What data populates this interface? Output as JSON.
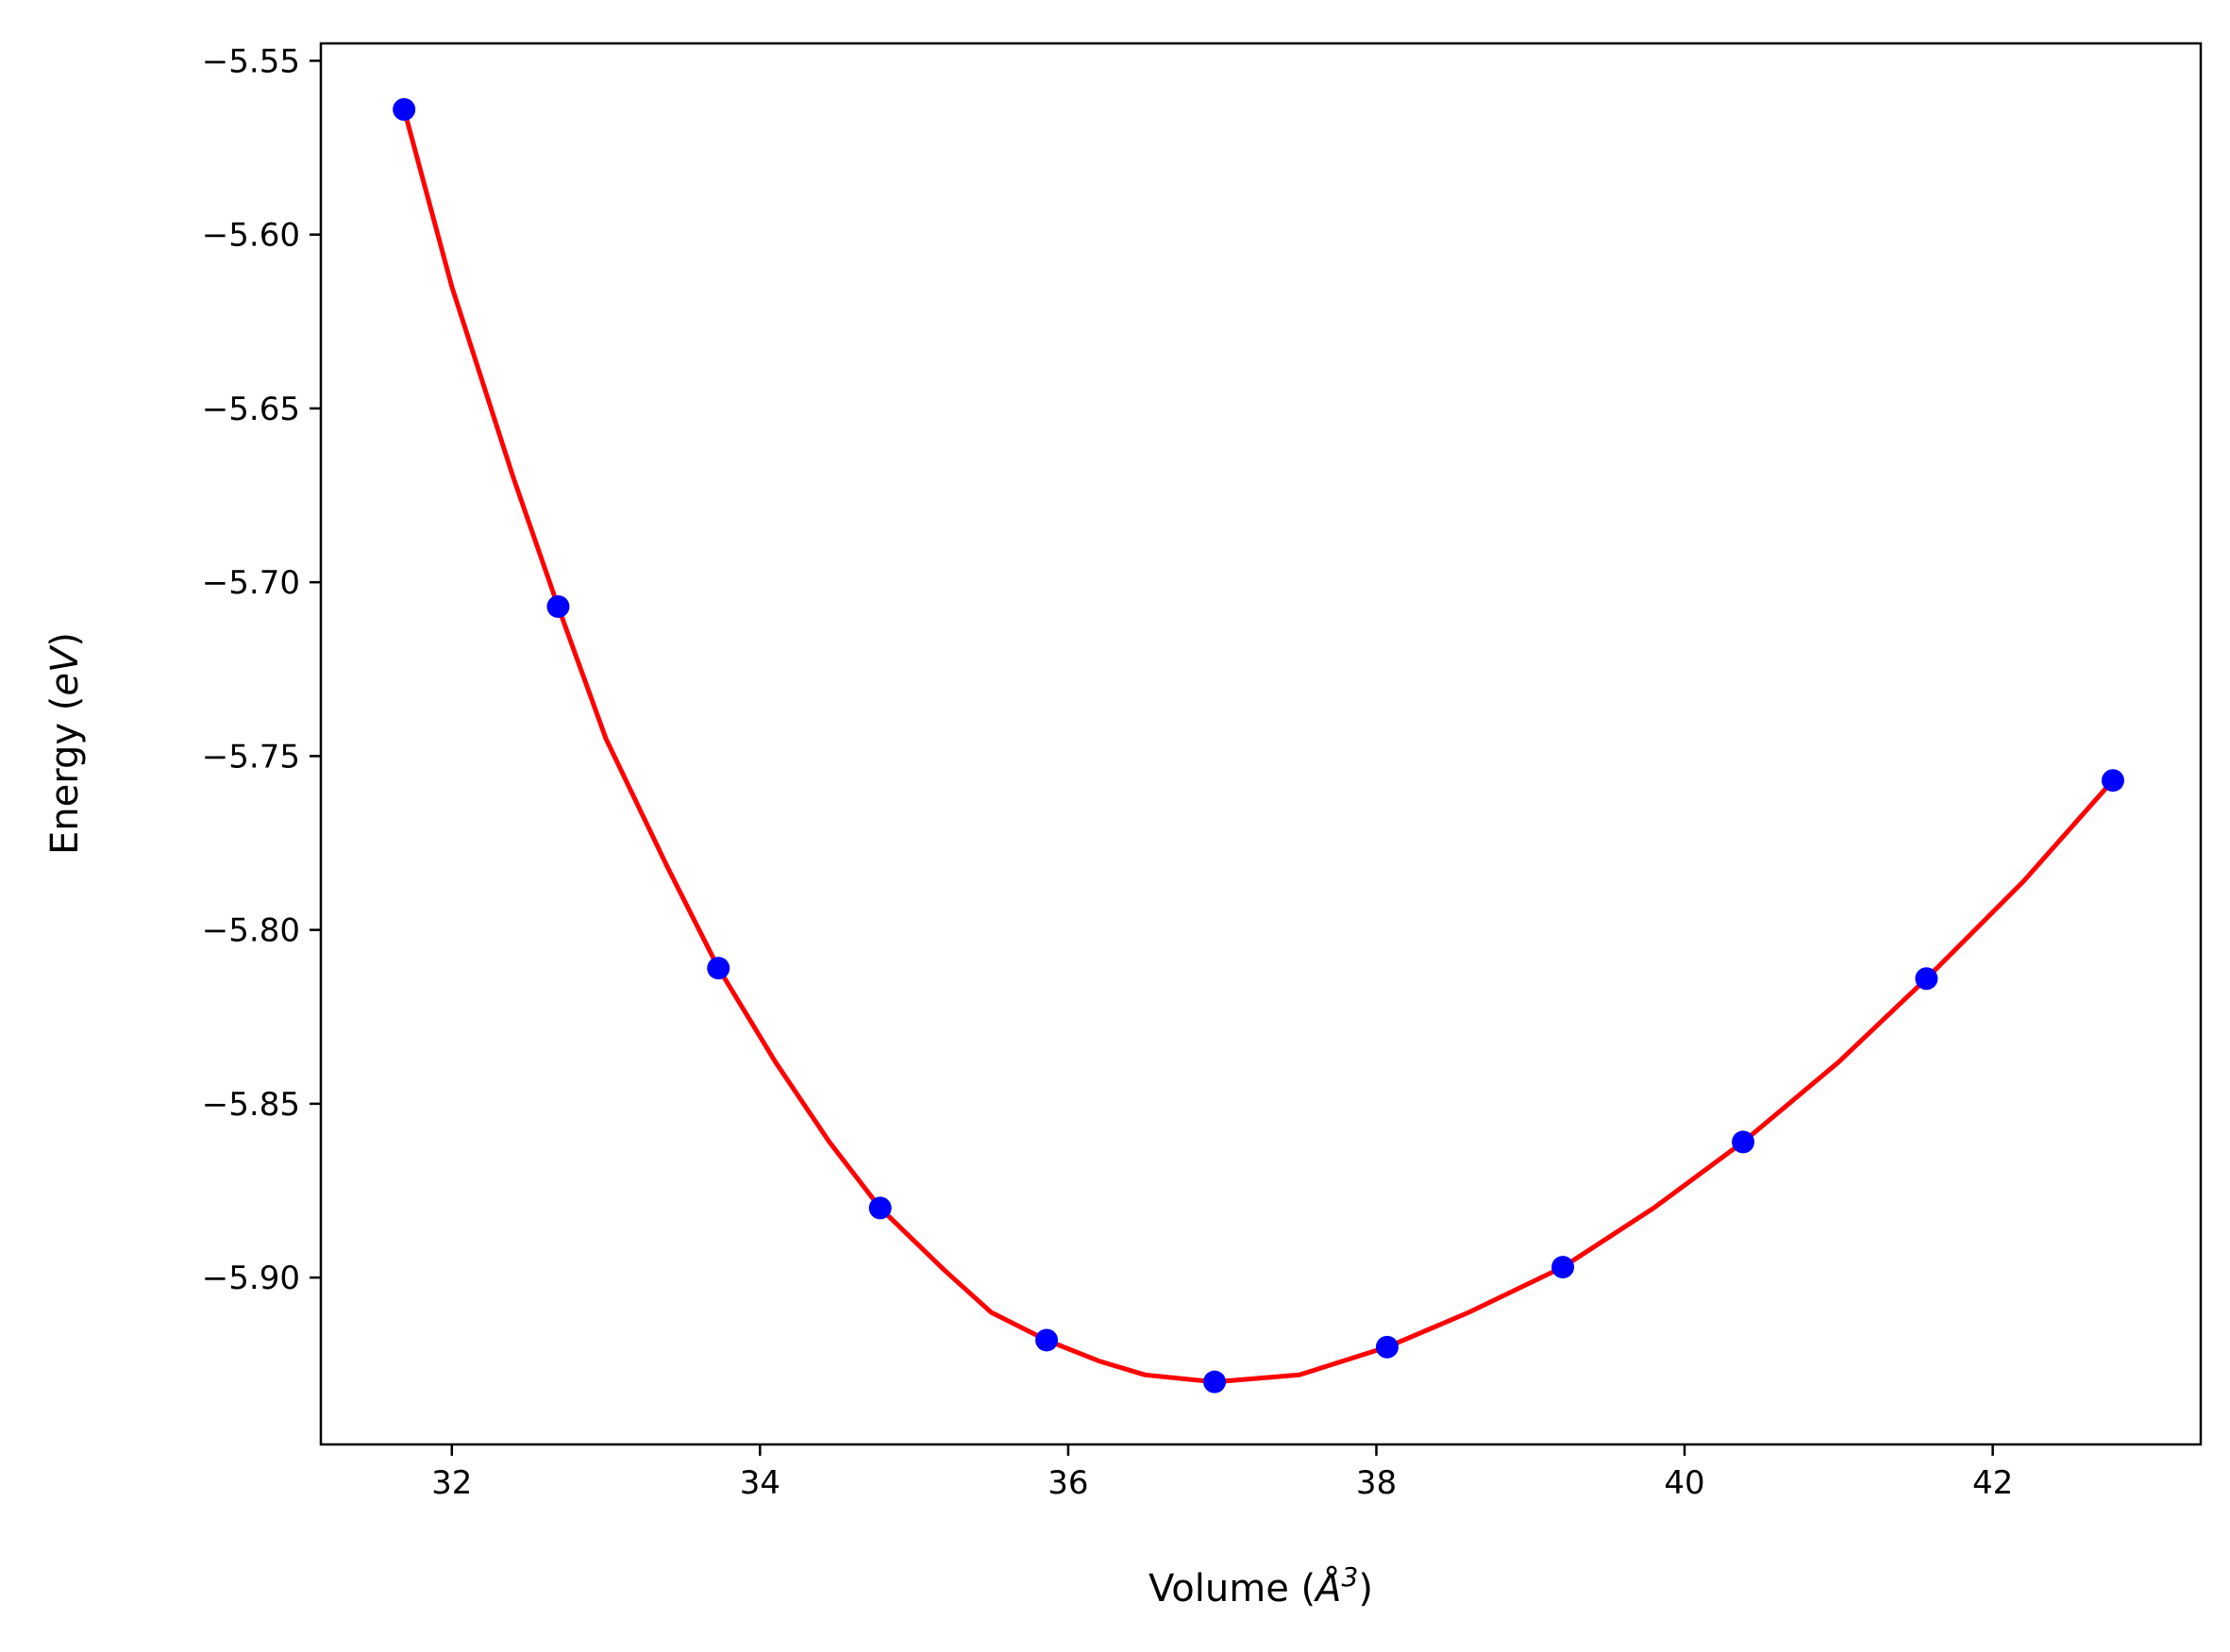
{
  "chart_data": {
    "type": "line",
    "title": "",
    "xlabel": "Volume (Å³)",
    "xlabel_parts": {
      "text": "Volume (",
      "symbol": "Å",
      "superscript": "3",
      "close": ")"
    },
    "ylabel": "Energy (eV)",
    "ylabel_parts": {
      "text": "Energy (",
      "unit": "eV",
      "close": ")"
    },
    "xlim": [
      31.15,
      43.35
    ],
    "ylim": [
      -5.948,
      -5.545
    ],
    "xticks": [
      32,
      34,
      36,
      38,
      40,
      42
    ],
    "xtick_labels": [
      "32",
      "34",
      "36",
      "38",
      "40",
      "42"
    ],
    "yticks": [
      -5.55,
      -5.6,
      -5.65,
      -5.7,
      -5.75,
      -5.8,
      -5.85,
      -5.9
    ],
    "ytick_labels": [
      "−5.55",
      "−5.60",
      "−5.65",
      "−5.70",
      "−5.75",
      "−5.80",
      "−5.85",
      "−5.90"
    ],
    "grid": false,
    "legend": "none",
    "series": [
      {
        "kind": "scatter",
        "color": "#0000ff",
        "x": [
          31.69,
          32.69,
          33.73,
          34.78,
          35.86,
          36.95,
          38.07,
          39.21,
          40.38,
          41.57,
          42.78
        ],
        "y": [
          -5.564,
          -5.707,
          -5.811,
          -5.88,
          -5.918,
          -5.93,
          -5.92,
          -5.897,
          -5.861,
          -5.814,
          -5.757
        ]
      },
      {
        "kind": "fit-line",
        "color": "#ff0000",
        "x": [
          31.69,
          32.0,
          32.4,
          32.69,
          33.0,
          33.4,
          33.73,
          34.1,
          34.45,
          34.78,
          35.2,
          35.5,
          35.86,
          36.2,
          36.5,
          36.95,
          37.5,
          38.07,
          38.6,
          39.21,
          39.8,
          40.38,
          41.0,
          41.57,
          42.2,
          42.78
        ],
        "y": [
          -5.564,
          -5.615,
          -5.67,
          -5.707,
          -5.745,
          -5.782,
          -5.811,
          -5.838,
          -5.861,
          -5.88,
          -5.898,
          -5.91,
          -5.918,
          -5.924,
          -5.928,
          -5.93,
          -5.928,
          -5.92,
          -5.91,
          -5.897,
          -5.88,
          -5.861,
          -5.838,
          -5.814,
          -5.786,
          -5.757
        ]
      }
    ]
  }
}
